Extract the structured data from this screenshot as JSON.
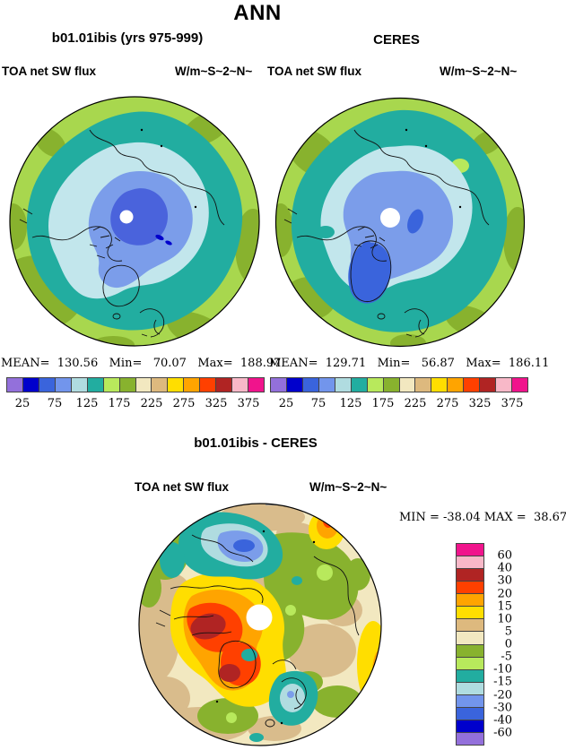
{
  "page_title": "ANN",
  "top": {
    "left_panel": {
      "title": "b01.01ibis (yrs 975-999)",
      "field_label": "TOA net SW flux",
      "units_label": "W/m~S~2~N~",
      "stats_line": "MEAN=  130.56   Min=   70.07   Max=  188.97"
    },
    "right_panel": {
      "title": "CERES",
      "field_label": "TOA net SW flux",
      "units_label": "W/m~S~2~N~",
      "stats_line": "MEAN=  129.71   Min=   56.87   Max=  186.11"
    },
    "colorbar": {
      "tick_labels": [
        "25",
        "75",
        "125",
        "175",
        "225",
        "275",
        "325",
        "375"
      ],
      "colors": [
        "#9370DB",
        "#0000CC",
        "#3A64DC",
        "#7295EC",
        "#B0DCE0",
        "#22ADA0",
        "#B8E95C",
        "#88B22E",
        "#F2E8C0",
        "#DDB97E",
        "#FFDE00",
        "#FFA400",
        "#FF4000",
        "#B02423",
        "#F8B8C8",
        "#F0148C"
      ]
    }
  },
  "bottom": {
    "title": "b01.01ibis - CERES",
    "field_label": "TOA net SW flux",
    "units_label": "W/m~S~2~N~",
    "minmax_line": "MIN = -38.04 MAX =  38.67",
    "colorbar": {
      "tick_labels": [
        "60",
        "40",
        "30",
        "20",
        "15",
        "10",
        "5",
        "0",
        "-5",
        "-10",
        "-15",
        "-20",
        "-30",
        "-40",
        "-60"
      ],
      "colors": [
        "#F0148C",
        "#F8B8C8",
        "#B02423",
        "#FF4000",
        "#FFA400",
        "#FFDE00",
        "#DDB97E",
        "#F2E8C0",
        "#88B22E",
        "#B8E95C",
        "#22ADA0",
        "#B0DCE0",
        "#7295EC",
        "#3A64DC",
        "#0000CC",
        "#9370DB"
      ]
    }
  },
  "chart_data": [
    {
      "type": "heatmap",
      "subtype": "filled-contour-polar-map",
      "projection": "north-polar-stereographic",
      "season": "ANN",
      "title": "b01.01ibis (yrs 975-999)",
      "variable": "TOA net SW flux",
      "units": "W/m~S~2~N~",
      "mean": 130.56,
      "min": 70.07,
      "max": 188.97,
      "contour_levels": [
        25,
        50,
        75,
        100,
        125,
        150,
        175,
        200,
        225,
        250,
        275,
        300,
        325,
        350,
        375
      ],
      "labeled_levels": [
        25,
        75,
        125,
        175,
        225,
        275,
        325,
        375
      ],
      "palette": [
        "#9370DB",
        "#0000CC",
        "#3A64DC",
        "#7295EC",
        "#B0DCE0",
        "#22ADA0",
        "#B8E95C",
        "#88B22E",
        "#F2E8C0",
        "#DDB97E",
        "#FFDE00",
        "#FFA400",
        "#FF4000",
        "#B02423",
        "#F8B8C8",
        "#F0148C"
      ],
      "legend_position": "below",
      "notes": "Pole hole (missing data) at center; values over Arctic ~75-125 (blues), midlatitude ring ~125-175 (teal/greens)"
    },
    {
      "type": "heatmap",
      "subtype": "filled-contour-polar-map",
      "projection": "north-polar-stereographic",
      "season": "ANN",
      "title": "CERES",
      "variable": "TOA net SW flux",
      "units": "W/m~S~2~N~",
      "mean": 129.71,
      "min": 56.87,
      "max": 186.11,
      "contour_levels": [
        25,
        50,
        75,
        100,
        125,
        150,
        175,
        200,
        225,
        250,
        275,
        300,
        325,
        350,
        375
      ],
      "labeled_levels": [
        25,
        75,
        125,
        175,
        225,
        275,
        325,
        375
      ],
      "palette": [
        "#9370DB",
        "#0000CC",
        "#3A64DC",
        "#7295EC",
        "#B0DCE0",
        "#22ADA0",
        "#B8E95C",
        "#88B22E",
        "#F2E8C0",
        "#DDB97E",
        "#FFDE00",
        "#FFA400",
        "#FF4000",
        "#B02423",
        "#F8B8C8",
        "#F0148C"
      ],
      "legend_position": "below"
    },
    {
      "type": "heatmap",
      "subtype": "filled-contour-polar-map",
      "projection": "north-polar-stereographic",
      "title": "b01.01ibis - CERES",
      "variable": "TOA net SW flux",
      "units": "W/m~S~2~N~",
      "min": -38.04,
      "max": 38.67,
      "contour_levels": [
        -60,
        -40,
        -30,
        -20,
        -15,
        -10,
        -5,
        0,
        5,
        10,
        15,
        20,
        30,
        40,
        60
      ],
      "palette_top_to_bottom": [
        "#F0148C",
        "#F8B8C8",
        "#B02423",
        "#FF4000",
        "#FFA400",
        "#FFDE00",
        "#DDB97E",
        "#F2E8C0",
        "#88B22E",
        "#B8E95C",
        "#22ADA0",
        "#B0DCE0",
        "#7295EC",
        "#3A64DC",
        "#0000CC",
        "#9370DB"
      ],
      "legend_position": "right",
      "notes": "Positive bias (orange/red up to +38.67) over northern Canada/Alaska and Greenland; negative bias (blue/teal down to -38.04) over coastal Siberia and Scandinavia"
    }
  ]
}
